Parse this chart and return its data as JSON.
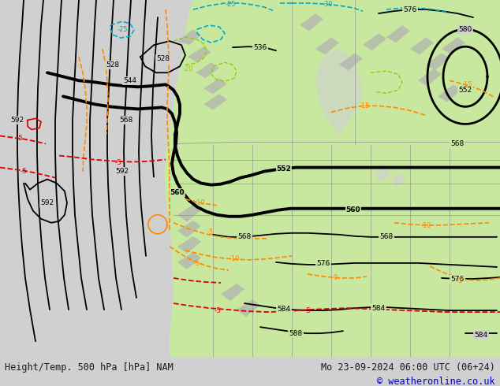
{
  "bottom_left_text": "Height/Temp. 500 hPa [hPa] NAM",
  "bottom_right_text1": "Mo 23-09-2024 06:00 UTC (06+24)",
  "bottom_right_text2": "© weatheronline.co.uk",
  "bg_gray": "#d0d0d0",
  "bg_green": "#c8e8a0",
  "bg_white": "#ffffff",
  "text_dark": "#1a1a1a",
  "text_blue": "#0000cc",
  "font_size_bottom": 8.5,
  "dpi": 100,
  "figsize": [
    6.34,
    4.9
  ]
}
